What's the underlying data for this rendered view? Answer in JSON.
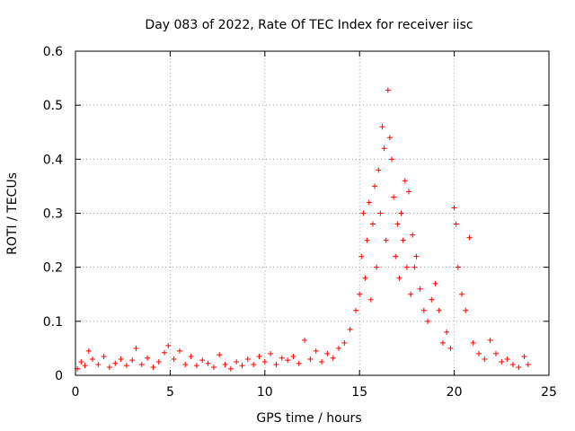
{
  "chart_data": {
    "type": "scatter",
    "title": "Day 083 of 2022, Rate Of TEC Index for receiver iisc",
    "xlabel": "GPS time / hours",
    "ylabel": "ROTI / TECUs",
    "xlim": [
      0,
      25
    ],
    "ylim": [
      0,
      0.6
    ],
    "x_ticks": [
      "0",
      "5",
      "10",
      "15",
      "20",
      "25"
    ],
    "y_ticks": [
      "0",
      "0.1",
      "0.2",
      "0.3",
      "0.4",
      "0.5",
      "0.6"
    ],
    "x_tick_values": [
      0,
      5,
      10,
      15,
      20,
      25
    ],
    "y_tick_values": [
      0,
      0.1,
      0.2,
      0.3,
      0.4,
      0.5,
      0.6
    ],
    "grid": true,
    "marker": "+",
    "color": "#ff0000",
    "series": [
      {
        "values": [
          [
            0.1,
            0.012
          ],
          [
            0.3,
            0.025
          ],
          [
            0.5,
            0.018
          ],
          [
            0.7,
            0.045
          ],
          [
            0.9,
            0.03
          ],
          [
            1.2,
            0.02
          ],
          [
            1.5,
            0.035
          ],
          [
            1.8,
            0.015
          ],
          [
            2.1,
            0.022
          ],
          [
            2.4,
            0.03
          ],
          [
            2.7,
            0.018
          ],
          [
            3.0,
            0.028
          ],
          [
            3.2,
            0.05
          ],
          [
            3.5,
            0.02
          ],
          [
            3.8,
            0.032
          ],
          [
            4.1,
            0.015
          ],
          [
            4.4,
            0.025
          ],
          [
            4.7,
            0.042
          ],
          [
            4.9,
            0.055
          ],
          [
            5.2,
            0.03
          ],
          [
            5.5,
            0.045
          ],
          [
            5.8,
            0.02
          ],
          [
            6.1,
            0.035
          ],
          [
            6.4,
            0.018
          ],
          [
            6.7,
            0.028
          ],
          [
            7.0,
            0.022
          ],
          [
            7.3,
            0.015
          ],
          [
            7.6,
            0.038
          ],
          [
            7.9,
            0.02
          ],
          [
            8.2,
            0.012
          ],
          [
            8.5,
            0.025
          ],
          [
            8.8,
            0.018
          ],
          [
            9.1,
            0.03
          ],
          [
            9.4,
            0.02
          ],
          [
            9.7,
            0.035
          ],
          [
            10.0,
            0.025
          ],
          [
            10.3,
            0.04
          ],
          [
            10.6,
            0.02
          ],
          [
            10.9,
            0.032
          ],
          [
            11.2,
            0.028
          ],
          [
            11.5,
            0.035
          ],
          [
            11.8,
            0.022
          ],
          [
            12.1,
            0.065
          ],
          [
            12.4,
            0.03
          ],
          [
            12.7,
            0.045
          ],
          [
            13.0,
            0.025
          ],
          [
            13.3,
            0.04
          ],
          [
            13.6,
            0.032
          ],
          [
            13.9,
            0.05
          ],
          [
            14.2,
            0.06
          ],
          [
            14.5,
            0.085
          ],
          [
            14.8,
            0.12
          ],
          [
            15.0,
            0.15
          ],
          [
            15.1,
            0.22
          ],
          [
            15.2,
            0.3
          ],
          [
            15.3,
            0.18
          ],
          [
            15.4,
            0.25
          ],
          [
            15.5,
            0.32
          ],
          [
            15.6,
            0.14
          ],
          [
            15.7,
            0.28
          ],
          [
            15.8,
            0.35
          ],
          [
            15.9,
            0.2
          ],
          [
            16.0,
            0.38
          ],
          [
            16.1,
            0.3
          ],
          [
            16.2,
            0.46
          ],
          [
            16.3,
            0.42
          ],
          [
            16.4,
            0.25
          ],
          [
            16.5,
            0.528
          ],
          [
            16.6,
            0.44
          ],
          [
            16.7,
            0.4
          ],
          [
            16.8,
            0.33
          ],
          [
            16.9,
            0.22
          ],
          [
            17.0,
            0.28
          ],
          [
            17.1,
            0.18
          ],
          [
            17.2,
            0.3
          ],
          [
            17.3,
            0.25
          ],
          [
            17.4,
            0.36
          ],
          [
            17.5,
            0.2
          ],
          [
            17.6,
            0.34
          ],
          [
            17.7,
            0.15
          ],
          [
            17.8,
            0.26
          ],
          [
            17.9,
            0.2
          ],
          [
            18.0,
            0.22
          ],
          [
            18.2,
            0.16
          ],
          [
            18.4,
            0.12
          ],
          [
            18.6,
            0.1
          ],
          [
            18.8,
            0.14
          ],
          [
            19.0,
            0.17
          ],
          [
            19.2,
            0.12
          ],
          [
            19.4,
            0.06
          ],
          [
            19.6,
            0.08
          ],
          [
            19.8,
            0.05
          ],
          [
            20.0,
            0.31
          ],
          [
            20.1,
            0.28
          ],
          [
            20.2,
            0.2
          ],
          [
            20.4,
            0.15
          ],
          [
            20.6,
            0.12
          ],
          [
            20.8,
            0.255
          ],
          [
            21.0,
            0.06
          ],
          [
            21.3,
            0.04
          ],
          [
            21.6,
            0.03
          ],
          [
            21.9,
            0.065
          ],
          [
            22.2,
            0.04
          ],
          [
            22.5,
            0.025
          ],
          [
            22.8,
            0.03
          ],
          [
            23.1,
            0.02
          ],
          [
            23.4,
            0.015
          ],
          [
            23.7,
            0.035
          ],
          [
            23.9,
            0.02
          ]
        ]
      }
    ]
  }
}
